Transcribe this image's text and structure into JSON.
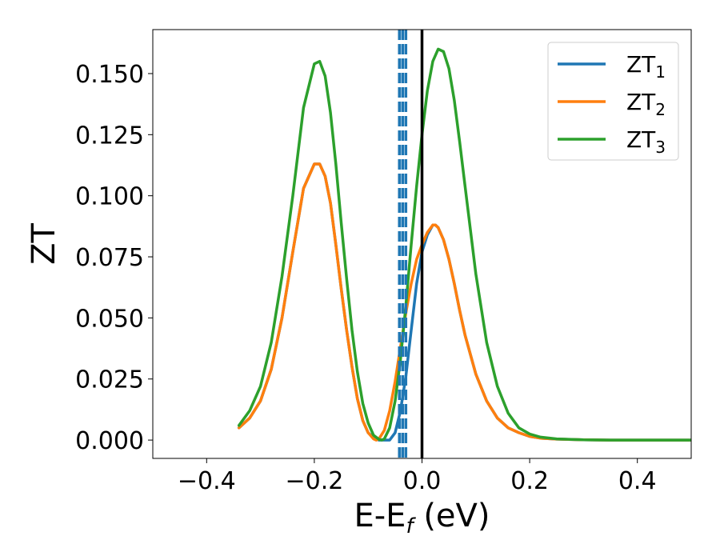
{
  "chart_data": {
    "type": "line",
    "xlabel": {
      "main": "E-E",
      "sub": "f",
      "tail": " (eV)"
    },
    "ylabel": "ZT",
    "xlim": [
      -0.5,
      0.5
    ],
    "ylim": [
      -0.0075,
      0.168
    ],
    "x_ticks": [
      -0.4,
      -0.2,
      0.0,
      0.2,
      0.4
    ],
    "x_tick_labels": [
      "−0.4",
      "−0.2",
      "0.0",
      "0.2",
      "0.4"
    ],
    "y_ticks": [
      0.0,
      0.025,
      0.05,
      0.075,
      0.1,
      0.125,
      0.15
    ],
    "y_tick_labels": [
      "0.000",
      "0.025",
      "0.050",
      "0.075",
      "0.100",
      "0.125",
      "0.150"
    ],
    "grid": false,
    "legend_position": "top-right",
    "vertical_line_solid": {
      "x": 0.0,
      "color": "#000000"
    },
    "vertical_lines_dashed": {
      "x": [
        -0.042,
        -0.036,
        -0.03
      ],
      "color": "#1f77b4"
    },
    "series": [
      {
        "name": "ZT",
        "sub": "1",
        "color": "#1f77b4",
        "x": [
          -0.34,
          -0.32,
          -0.3,
          -0.28,
          -0.26,
          -0.24,
          -0.22,
          -0.2,
          -0.19,
          -0.18,
          -0.17,
          -0.16,
          -0.15,
          -0.14,
          -0.13,
          -0.12,
          -0.11,
          -0.1,
          -0.09,
          -0.08,
          -0.07,
          -0.06,
          -0.05,
          -0.04,
          -0.03,
          -0.02,
          -0.01,
          0.0,
          0.01,
          0.02,
          0.025,
          0.03,
          0.04,
          0.05,
          0.06,
          0.07,
          0.08,
          0.1,
          0.12,
          0.14,
          0.16,
          0.18,
          0.2,
          0.22,
          0.25,
          0.3,
          0.35,
          0.4,
          0.45,
          0.5
        ],
        "y": [
          0.005,
          0.009,
          0.016,
          0.029,
          0.05,
          0.077,
          0.103,
          0.113,
          0.113,
          0.108,
          0.097,
          0.08,
          0.062,
          0.045,
          0.03,
          0.017,
          0.008,
          0.003,
          0.001,
          0.0,
          0.0,
          0.0,
          0.003,
          0.012,
          0.026,
          0.045,
          0.064,
          0.077,
          0.084,
          0.088,
          0.088,
          0.087,
          0.082,
          0.074,
          0.064,
          0.053,
          0.043,
          0.027,
          0.016,
          0.009,
          0.005,
          0.003,
          0.0015,
          0.0008,
          0.0004,
          0.0001,
          0.0,
          0.0,
          0.0,
          0.0
        ]
      },
      {
        "name": "ZT",
        "sub": "2",
        "color": "#ff7f0e",
        "x": [
          -0.34,
          -0.32,
          -0.3,
          -0.28,
          -0.26,
          -0.24,
          -0.22,
          -0.2,
          -0.19,
          -0.18,
          -0.17,
          -0.16,
          -0.15,
          -0.14,
          -0.13,
          -0.12,
          -0.11,
          -0.1,
          -0.09,
          -0.085,
          -0.08,
          -0.07,
          -0.06,
          -0.05,
          -0.04,
          -0.03,
          -0.02,
          -0.01,
          0.0,
          0.01,
          0.02,
          0.025,
          0.03,
          0.04,
          0.05,
          0.06,
          0.07,
          0.08,
          0.1,
          0.12,
          0.14,
          0.16,
          0.18,
          0.2,
          0.22,
          0.25,
          0.3,
          0.35,
          0.4,
          0.45,
          0.5
        ],
        "y": [
          0.005,
          0.009,
          0.016,
          0.029,
          0.05,
          0.077,
          0.103,
          0.113,
          0.113,
          0.108,
          0.097,
          0.08,
          0.062,
          0.045,
          0.03,
          0.017,
          0.008,
          0.003,
          0.0005,
          0.0,
          0.0005,
          0.004,
          0.012,
          0.024,
          0.038,
          0.052,
          0.064,
          0.074,
          0.08,
          0.085,
          0.088,
          0.088,
          0.087,
          0.082,
          0.074,
          0.064,
          0.053,
          0.043,
          0.027,
          0.016,
          0.009,
          0.005,
          0.003,
          0.0015,
          0.0008,
          0.0004,
          0.0001,
          0.0,
          0.0,
          0.0,
          0.0
        ]
      },
      {
        "name": "ZT",
        "sub": "3",
        "color": "#2ca02c",
        "x": [
          -0.34,
          -0.32,
          -0.3,
          -0.28,
          -0.26,
          -0.24,
          -0.22,
          -0.2,
          -0.19,
          -0.18,
          -0.17,
          -0.16,
          -0.15,
          -0.14,
          -0.13,
          -0.12,
          -0.11,
          -0.1,
          -0.09,
          -0.08,
          -0.075,
          -0.07,
          -0.06,
          -0.05,
          -0.04,
          -0.03,
          -0.02,
          -0.01,
          0.0,
          0.01,
          0.02,
          0.03,
          0.04,
          0.05,
          0.06,
          0.07,
          0.08,
          0.1,
          0.12,
          0.14,
          0.16,
          0.18,
          0.2,
          0.22,
          0.25,
          0.3,
          0.35,
          0.4,
          0.45,
          0.5
        ],
        "y": [
          0.006,
          0.012,
          0.022,
          0.04,
          0.067,
          0.1,
          0.136,
          0.154,
          0.155,
          0.149,
          0.134,
          0.113,
          0.089,
          0.066,
          0.045,
          0.028,
          0.015,
          0.007,
          0.002,
          0.0003,
          0.0,
          0.0005,
          0.005,
          0.016,
          0.033,
          0.055,
          0.08,
          0.104,
          0.125,
          0.143,
          0.155,
          0.16,
          0.159,
          0.152,
          0.139,
          0.122,
          0.104,
          0.068,
          0.04,
          0.022,
          0.011,
          0.005,
          0.0025,
          0.0012,
          0.0005,
          0.0001,
          0.0,
          0.0,
          0.0,
          0.0
        ]
      }
    ]
  }
}
